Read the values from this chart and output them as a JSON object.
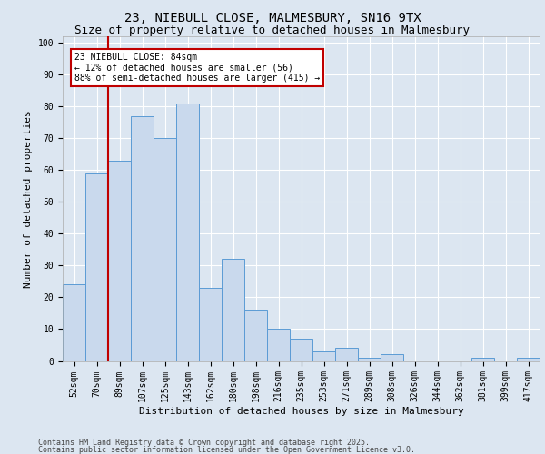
{
  "title_line1": "23, NIEBULL CLOSE, MALMESBURY, SN16 9TX",
  "title_line2": "Size of property relative to detached houses in Malmesbury",
  "xlabel": "Distribution of detached houses by size in Malmesbury",
  "ylabel": "Number of detached properties",
  "categories": [
    "52sqm",
    "70sqm",
    "89sqm",
    "107sqm",
    "125sqm",
    "143sqm",
    "162sqm",
    "180sqm",
    "198sqm",
    "216sqm",
    "235sqm",
    "253sqm",
    "271sqm",
    "289sqm",
    "308sqm",
    "326sqm",
    "344sqm",
    "362sqm",
    "381sqm",
    "399sqm",
    "417sqm"
  ],
  "values": [
    24,
    59,
    63,
    77,
    70,
    81,
    23,
    32,
    16,
    10,
    7,
    3,
    4,
    1,
    2,
    0,
    0,
    0,
    1,
    0,
    1
  ],
  "bar_color": "#c9d9ed",
  "bar_edge_color": "#5b9bd5",
  "background_color": "#dce6f1",
  "plot_bg_color": "#dce6f1",
  "grid_color": "#ffffff",
  "vline_x_pos": 1.5,
  "vline_color": "#c00000",
  "annotation_text": "23 NIEBULL CLOSE: 84sqm\n← 12% of detached houses are smaller (56)\n88% of semi-detached houses are larger (415) →",
  "annotation_box_color": "#c00000",
  "ylim": [
    0,
    102
  ],
  "yticks": [
    0,
    10,
    20,
    30,
    40,
    50,
    60,
    70,
    80,
    90,
    100
  ],
  "footnote_line1": "Contains HM Land Registry data © Crown copyright and database right 2025.",
  "footnote_line2": "Contains public sector information licensed under the Open Government Licence v3.0.",
  "title_fontsize": 10,
  "subtitle_fontsize": 9,
  "axis_label_fontsize": 8,
  "tick_fontsize": 7,
  "annotation_fontsize": 7,
  "footnote_fontsize": 6
}
